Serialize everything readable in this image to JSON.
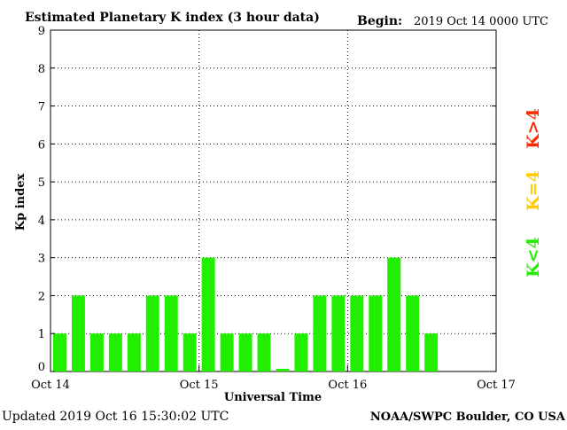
{
  "header": {
    "title": "Estimated Planetary K index (3 hour data)",
    "begin_label": "Begin:",
    "begin_value": "2019 Oct 14 0000 UTC"
  },
  "footer": {
    "updated": "Updated 2019 Oct 16 15:30:02 UTC",
    "source": "NOAA/SWPC Boulder, CO USA"
  },
  "legend": {
    "high_label": "K>4",
    "equal_label": "K=4",
    "low_label": "K<4",
    "high_color": "#ff2a00",
    "equal_color": "#ffcc00",
    "low_color": "#22ee00"
  },
  "chart_data": {
    "type": "bar",
    "ylabel": "Kp index",
    "xlabel": "Universal Time",
    "ylim": [
      0,
      9
    ],
    "yticks": [
      0,
      1,
      2,
      3,
      4,
      5,
      6,
      7,
      8,
      9
    ],
    "xtick_labels": [
      "Oct 14",
      "Oct 15",
      "Oct 16",
      "Oct 17"
    ],
    "bar_slots": 24,
    "bar_color": "#22ee00",
    "values": [
      1,
      2,
      1,
      1,
      1,
      2,
      2,
      1,
      3,
      1,
      1,
      1,
      0.07,
      1,
      2,
      2,
      2,
      2,
      3,
      2,
      1
    ],
    "grid": "dotted, at each y integer and each day boundary"
  }
}
